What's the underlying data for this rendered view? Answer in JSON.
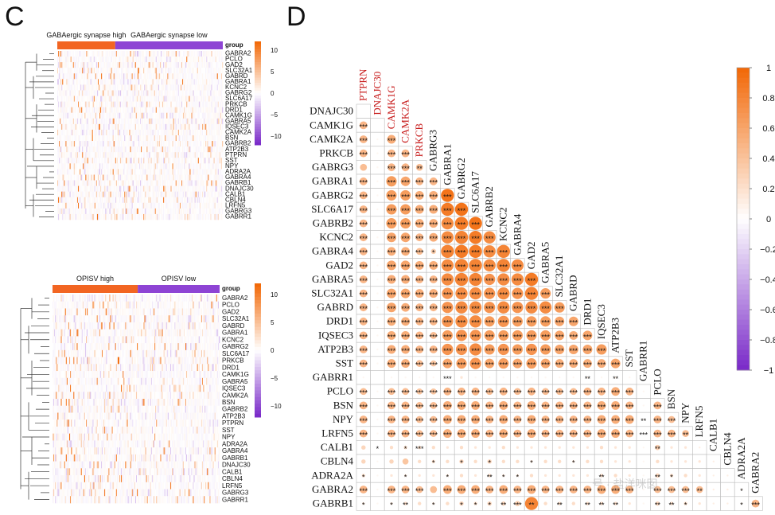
{
  "panels": {
    "c_letter": "C",
    "d_letter": "D"
  },
  "chart_data": [
    {
      "type": "heatmap",
      "panel": "C-top",
      "title": "",
      "group_labels": [
        "GABAergic synapse high",
        "GABAergic synapse low"
      ],
      "group_header": "group",
      "group_colors": [
        "#f26522",
        "#8e44d4"
      ],
      "genes": [
        "GABRA2",
        "PCLO",
        "GAD2",
        "SLC32A1",
        "GABRD",
        "GABRA1",
        "KCNC2",
        "GABRG2",
        "SLC6A17",
        "PRKCB",
        "DRD1",
        "CAMK1G",
        "GABRA5",
        "IQSEC3",
        "CAMK2A",
        "BSN",
        "GABRB2",
        "ATP2B3",
        "PTPRN",
        "SST",
        "NPY",
        "ADRA2A",
        "GABRA4",
        "GABRB1",
        "DNAJC30",
        "CALB1",
        "CBLN4",
        "LRFN5",
        "GABRG3",
        "GABRR1"
      ],
      "colorbar_ticks": [
        "10",
        "5",
        "0",
        "−5",
        "−10"
      ],
      "colorbar_values": [
        10,
        5,
        0,
        -5,
        -10
      ],
      "ylim": [
        -12,
        12
      ]
    },
    {
      "type": "heatmap",
      "panel": "C-bottom",
      "title": "",
      "group_labels": [
        "OPISV  high",
        "OPISV  low"
      ],
      "group_header": "group",
      "group_colors": [
        "#f26522",
        "#8e44d4"
      ],
      "genes": [
        "GABRA2",
        "PCLO",
        "GAD2",
        "SLC32A1",
        "GABRD",
        "GABRA1",
        "KCNC2",
        "GABRG2",
        "SLC6A17",
        "PRKCB",
        "DRD1",
        "CAMK1G",
        "GABRA5",
        "IQSEC3",
        "CAMK2A",
        "BSN",
        "GABRB2",
        "ATP2B3",
        "PTPRN",
        "SST",
        "NPY",
        "ADRA2A",
        "GABRA4",
        "GABRB1",
        "DNAJC30",
        "CALB1",
        "CBLN4",
        "LRFN5",
        "GABRG3",
        "GABRR1"
      ],
      "colorbar_ticks": [
        "10",
        "5",
        "0",
        "−5",
        "−10"
      ],
      "colorbar_values": [
        10,
        5,
        0,
        -5,
        -10
      ],
      "ylim": [
        -12,
        12
      ]
    },
    {
      "type": "heatmap",
      "panel": "D",
      "title": "",
      "subtype": "correlation-lower-triangle",
      "row_labels": [
        "DNAJC30",
        "CAMK1G",
        "CAMK2A",
        "PRKCB",
        "GABRG3",
        "GABRA1",
        "GABRG2",
        "SLC6A17",
        "GABRB2",
        "KCNC2",
        "GABRA4",
        "GAD2",
        "GABRA5",
        "SLC32A1",
        "GABRD",
        "DRD1",
        "IQSEC3",
        "ATP2B3",
        "SST",
        "GABRR1",
        "PCLO",
        "BSN",
        "NPY",
        "LRFN5",
        "CALB1",
        "CBLN4",
        "ADRA2A",
        "GABRA2",
        "GABRB1"
      ],
      "column_labels": [
        "PTPRN",
        "DNAJC30",
        "CAMK1G",
        "CAMK2A",
        "PRKCB",
        "GABRG3",
        "GABRA1",
        "GABRG2",
        "SLC6A17",
        "GABRB2",
        "KCNC2",
        "GABRA4",
        "GAD2",
        "GABRA5",
        "SLC32A1",
        "GABRD",
        "DRD1",
        "IQSEC3",
        "ATP2B3",
        "SST",
        "GABRR1",
        "PCLO",
        "BSN",
        "NPY",
        "LRFN5",
        "CALB1",
        "CBLN4",
        "ADRA2A",
        "GABRA2"
      ],
      "red_column_labels": [
        "PTPRN",
        "DNAJC30",
        "CAMK1G",
        "CAMK2A",
        "PRKCB"
      ],
      "colorbar_ticks": [
        "1",
        "0.8",
        "0.6",
        "0.4",
        "0.2",
        "0",
        "−0.2",
        "−0.4",
        "−0.6",
        "−0.8",
        "−1"
      ],
      "colorbar_values": [
        1,
        0.8,
        0.6,
        0.4,
        0.2,
        0,
        -0.2,
        -0.4,
        -0.6,
        -0.8,
        -1
      ],
      "ylim": [
        -1,
        1
      ],
      "significance_symbols": [
        "***",
        "**",
        "*"
      ],
      "row_strengths": [
        [
          0
        ],
        [
          0.45
        ],
        [
          0.45,
          0.05,
          0.5
        ],
        [
          0.45,
          0.05,
          0.45,
          0.45
        ],
        [
          0.4,
          0.05,
          0.45,
          0.45,
          0.4
        ],
        [
          0.45,
          0.05,
          0.6,
          0.55,
          0.45,
          0.45
        ],
        [
          0.45,
          0.05,
          0.6,
          0.6,
          0.5,
          0.5,
          0.85
        ],
        [
          0.45,
          0.05,
          0.6,
          0.6,
          0.5,
          0.5,
          0.8,
          0.85
        ],
        [
          0.45,
          0.05,
          0.6,
          0.6,
          0.5,
          0.5,
          0.7,
          0.8,
          0.85
        ],
        [
          0.45,
          0.05,
          0.55,
          0.55,
          0.45,
          0.5,
          0.7,
          0.75,
          0.8,
          0.7
        ],
        [
          0.45,
          0.05,
          0.5,
          0.5,
          0.4,
          0.3,
          0.75,
          0.8,
          0.8,
          0.7,
          0.75
        ],
        [
          0.45,
          0.05,
          0.55,
          0.55,
          0.5,
          0.5,
          0.7,
          0.75,
          0.75,
          0.7,
          0.75,
          0.7
        ],
        [
          0.45,
          0.05,
          0.5,
          0.5,
          0.45,
          0.45,
          0.7,
          0.75,
          0.75,
          0.65,
          0.7,
          0.7,
          0.8
        ],
        [
          0.45,
          0.05,
          0.55,
          0.55,
          0.5,
          0.5,
          0.65,
          0.7,
          0.7,
          0.65,
          0.7,
          0.65,
          0.75,
          0.6
        ],
        [
          0.45,
          0.05,
          0.55,
          0.5,
          0.45,
          0.45,
          0.65,
          0.7,
          0.7,
          0.65,
          0.7,
          0.65,
          0.7,
          0.7,
          0.6
        ],
        [
          0.45,
          0.05,
          0.5,
          0.5,
          0.45,
          0.45,
          0.65,
          0.7,
          0.7,
          0.6,
          0.65,
          0.6,
          0.6,
          0.6,
          0.55,
          0.55
        ],
        [
          0.45,
          0.05,
          0.5,
          0.5,
          0.45,
          0.4,
          0.6,
          0.65,
          0.65,
          0.6,
          0.6,
          0.6,
          0.6,
          0.6,
          0.55,
          0.5,
          0.55
        ],
        [
          0.45,
          0.05,
          0.5,
          0.5,
          0.45,
          0.45,
          0.65,
          0.65,
          0.7,
          0.6,
          0.65,
          0.6,
          0.65,
          0.6,
          0.55,
          0.55,
          0.55,
          0.6
        ],
        [
          0.45,
          0.05,
          0.5,
          0.5,
          0.4,
          0.35,
          0.55,
          0.6,
          0.65,
          0.55,
          0.6,
          0.55,
          0.6,
          0.55,
          0.5,
          0.5,
          0.5,
          0.5,
          0.55
        ],
        [
          0.05,
          0.02,
          0.05,
          0.05,
          0.05,
          0.05,
          0.1,
          0.15,
          0.05,
          0.05,
          0.05,
          0.05,
          0.05,
          0.05,
          0.05,
          0.05,
          0.1,
          0.05,
          0.1,
          0.05
        ],
        [
          0.4,
          0.05,
          0.4,
          0.4,
          0.35,
          0.35,
          0.45,
          0.45,
          0.45,
          0.4,
          0.45,
          0.4,
          0.45,
          0.4,
          0.4,
          0.4,
          0.45,
          0.45,
          0.5,
          0.45,
          0.05
        ],
        [
          0.45,
          0.05,
          0.45,
          0.45,
          0.4,
          0.4,
          0.5,
          0.5,
          0.5,
          0.45,
          0.5,
          0.45,
          0.5,
          0.45,
          0.45,
          0.45,
          0.45,
          0.5,
          0.5,
          0.45,
          0.05,
          0.45
        ],
        [
          0.45,
          0.05,
          0.45,
          0.45,
          0.4,
          0.4,
          0.5,
          0.5,
          0.5,
          0.45,
          0.5,
          0.45,
          0.5,
          0.45,
          0.45,
          0.45,
          0.45,
          0.5,
          0.5,
          0.5,
          0.05,
          0.45,
          0.4
        ],
        [
          0.45,
          0.05,
          0.45,
          0.45,
          0.4,
          0.4,
          0.5,
          0.5,
          0.5,
          0.45,
          0.5,
          0.45,
          0.5,
          0.45,
          0.45,
          0.45,
          0.45,
          0.5,
          0.5,
          0.45,
          0.05,
          0.45,
          0.45,
          0.4
        ],
        [
          0.25,
          0.05,
          0.2,
          0.2,
          0.2,
          0.2,
          0.15,
          0.2,
          0.15,
          0.15,
          0.2,
          0.15,
          0.15,
          0.15,
          0.15,
          0.15,
          0.15,
          0.2,
          0.15,
          0.15,
          0.05,
          0.3,
          0.15,
          0.15,
          0.1
        ],
        [
          0.25,
          0.05,
          0.25,
          0.35,
          0.2,
          0.2,
          0.2,
          0.25,
          0.2,
          0.25,
          0.2,
          0.2,
          0.15,
          0.2,
          0.2,
          0.15,
          0.2,
          0.2,
          0.15,
          0.15,
          0.05,
          0.2,
          0.15,
          0.15,
          0.15,
          0.1
        ],
        [
          0.2,
          0.05,
          0.15,
          0.15,
          0.15,
          0.15,
          0.15,
          0.2,
          0.15,
          0.2,
          0.15,
          0.15,
          0.2,
          0.15,
          0.15,
          0.15,
          0.15,
          0.2,
          0.2,
          0.15,
          0.05,
          0.25,
          0.2,
          0.2,
          0.15,
          0.1,
          0.1
        ],
        [
          0.45,
          0.05,
          0.45,
          0.45,
          0.4,
          0.4,
          0.5,
          0.5,
          0.5,
          0.45,
          0.5,
          0.45,
          0.5,
          0.45,
          0.45,
          0.45,
          0.45,
          0.5,
          0.5,
          0.45,
          0.05,
          0.4,
          0.4,
          0.4,
          0.4,
          0.1,
          0.1,
          0.1
        ],
        [
          0.15,
          0.05,
          0.15,
          0.2,
          0.2,
          0.15,
          0.2,
          0.25,
          0.2,
          0.25,
          0.25,
          0.3,
          0.75,
          0.2,
          0.2,
          0.2,
          0.2,
          0.2,
          0.2,
          0.15,
          0.05,
          0.25,
          0.2,
          0.2,
          0.15,
          0.1,
          0.1,
          0.1,
          0.45
        ]
      ],
      "row_symbols": [
        [
          ""
        ],
        [
          "***"
        ],
        [
          "***",
          "",
          "***"
        ],
        [
          "***",
          "",
          "***",
          "***"
        ],
        [
          "",
          "",
          "***",
          "***",
          "**"
        ],
        [
          "***",
          "",
          "***",
          "***",
          "***",
          "***"
        ],
        [
          "***",
          "",
          "***",
          "***",
          "***",
          "***",
          "***"
        ],
        [
          "***",
          "",
          "***",
          "***",
          "***",
          "***",
          "***",
          "***"
        ],
        [
          "***",
          "",
          "***",
          "***",
          "***",
          "***",
          "***",
          "***",
          "***"
        ],
        [
          "***",
          "",
          "***",
          "***",
          "***",
          "***",
          "***",
          "***",
          "***",
          "***"
        ],
        [
          "***",
          "",
          "***",
          "***",
          "***",
          "*",
          "***",
          "***",
          "***",
          "***",
          "***"
        ],
        [
          "***",
          "",
          "***",
          "***",
          "***",
          "***",
          "***",
          "***",
          "***",
          "***",
          "***",
          "***"
        ],
        [
          "***",
          "",
          "***",
          "***",
          "***",
          "***",
          "***",
          "***",
          "***",
          "***",
          "***",
          "***",
          "***"
        ],
        [
          "***",
          "",
          "***",
          "***",
          "***",
          "***",
          "***",
          "***",
          "***",
          "***",
          "***",
          "***",
          "***",
          "***"
        ],
        [
          "***",
          "",
          "***",
          "***",
          "***",
          "***",
          "***",
          "***",
          "***",
          "***",
          "***",
          "***",
          "***",
          "***",
          "***"
        ],
        [
          "***",
          "",
          "***",
          "***",
          "***",
          "***",
          "***",
          "***",
          "***",
          "***",
          "***",
          "***",
          "***",
          "***",
          "***",
          "***"
        ],
        [
          "***",
          "",
          "***",
          "***",
          "***",
          "***",
          "***",
          "***",
          "***",
          "***",
          "***",
          "***",
          "***",
          "***",
          "***",
          "***",
          "***"
        ],
        [
          "***",
          "",
          "***",
          "***",
          "***",
          "***",
          "***",
          "***",
          "***",
          "***",
          "***",
          "***",
          "***",
          "***",
          "***",
          "***",
          "***",
          "***"
        ],
        [
          "***",
          "",
          "***",
          "***",
          "***",
          "***",
          "***",
          "***",
          "***",
          "***",
          "***",
          "***",
          "***",
          "***",
          "***",
          "***",
          "***",
          "***",
          "***"
        ],
        [
          "",
          "",
          "",
          "",
          "",
          "",
          "***",
          "",
          "",
          "",
          "",
          "",
          "",
          "",
          "",
          "",
          "**",
          "",
          "**",
          ""
        ],
        [
          "***",
          "",
          "***",
          "***",
          "***",
          "***",
          "***",
          "***",
          "***",
          "***",
          "***",
          "***",
          "***",
          "***",
          "***",
          "***",
          "***",
          "***",
          "***",
          "***",
          ""
        ],
        [
          "***",
          "",
          "***",
          "***",
          "***",
          "***",
          "***",
          "***",
          "***",
          "***",
          "***",
          "***",
          "***",
          "***",
          "***",
          "***",
          "***",
          "***",
          "***",
          "***",
          "",
          "***"
        ],
        [
          "***",
          "",
          "***",
          "***",
          "***",
          "***",
          "***",
          "***",
          "***",
          "***",
          "***",
          "***",
          "***",
          "***",
          "***",
          "***",
          "***",
          "***",
          "***",
          "***",
          "**",
          "***",
          "***"
        ],
        [
          "***",
          "",
          "***",
          "***",
          "***",
          "***",
          "***",
          "***",
          "***",
          "***",
          "***",
          "***",
          "***",
          "***",
          "***",
          "***",
          "***",
          "***",
          "***",
          "***",
          "***",
          "***",
          "***",
          "**"
        ],
        [
          "",
          "*",
          "",
          "*",
          "***",
          "",
          "",
          "",
          "",
          "",
          "",
          "",
          "",
          "",
          "",
          "",
          "",
          "",
          "",
          "",
          "",
          "**",
          "",
          "",
          ""
        ],
        [
          "",
          "",
          "",
          "",
          "",
          "*",
          "",
          "*",
          "",
          "*",
          "",
          "",
          "*",
          "",
          "",
          "*",
          "",
          "",
          "",
          "",
          "",
          "",
          "",
          "",
          "",
          ""
        ],
        [
          "*",
          "",
          "",
          "*",
          "",
          "",
          "*",
          "",
          "",
          "**",
          "*",
          "*",
          "",
          "",
          "",
          "",
          "",
          "**",
          "",
          "",
          "",
          "**",
          "*",
          "",
          "",
          "",
          ""
        ],
        [
          "***",
          "",
          "***",
          "***",
          "***",
          "",
          "***",
          "***",
          "***",
          "***",
          "***",
          "***",
          "***",
          "***",
          "***",
          "***",
          "***",
          "***",
          "***",
          "***",
          "",
          "***",
          "***",
          "***",
          "**",
          "",
          "",
          "*"
        ],
        [
          "*",
          "",
          "*",
          "**",
          "",
          "*",
          "",
          "*",
          "*",
          "*",
          "**",
          "***",
          "**",
          "",
          "**",
          "",
          "**",
          "**",
          "**",
          "",
          "",
          "**",
          "**",
          "*",
          "",
          "",
          "",
          "*",
          "***"
        ]
      ],
      "watermark": "号 · 盐洋咪囡"
    }
  ]
}
